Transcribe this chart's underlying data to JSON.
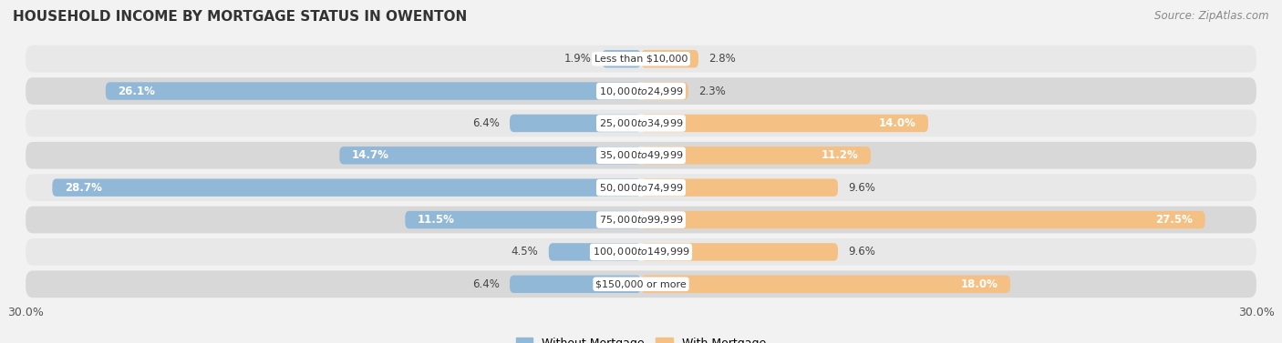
{
  "title": "HOUSEHOLD INCOME BY MORTGAGE STATUS IN OWENTON",
  "source": "Source: ZipAtlas.com",
  "categories": [
    "Less than $10,000",
    "$10,000 to $24,999",
    "$25,000 to $34,999",
    "$35,000 to $49,999",
    "$50,000 to $74,999",
    "$75,000 to $99,999",
    "$100,000 to $149,999",
    "$150,000 or more"
  ],
  "without_mortgage": [
    1.9,
    26.1,
    6.4,
    14.7,
    28.7,
    11.5,
    4.5,
    6.4
  ],
  "with_mortgage": [
    2.8,
    2.3,
    14.0,
    11.2,
    9.6,
    27.5,
    9.6,
    18.0
  ],
  "color_without": "#92b8d8",
  "color_with": "#f5c083",
  "color_without_dark": "#5b9abf",
  "color_with_dark": "#e8972a",
  "xlim": [
    -30,
    30
  ],
  "background_color": "#f2f2f2",
  "row_bg_light": "#e8e8e8",
  "row_bg_dark": "#d8d8d8",
  "title_fontsize": 11,
  "source_fontsize": 8.5,
  "label_fontsize": 8.5,
  "cat_fontsize": 8,
  "legend_fontsize": 9,
  "axis_label_fontsize": 9
}
